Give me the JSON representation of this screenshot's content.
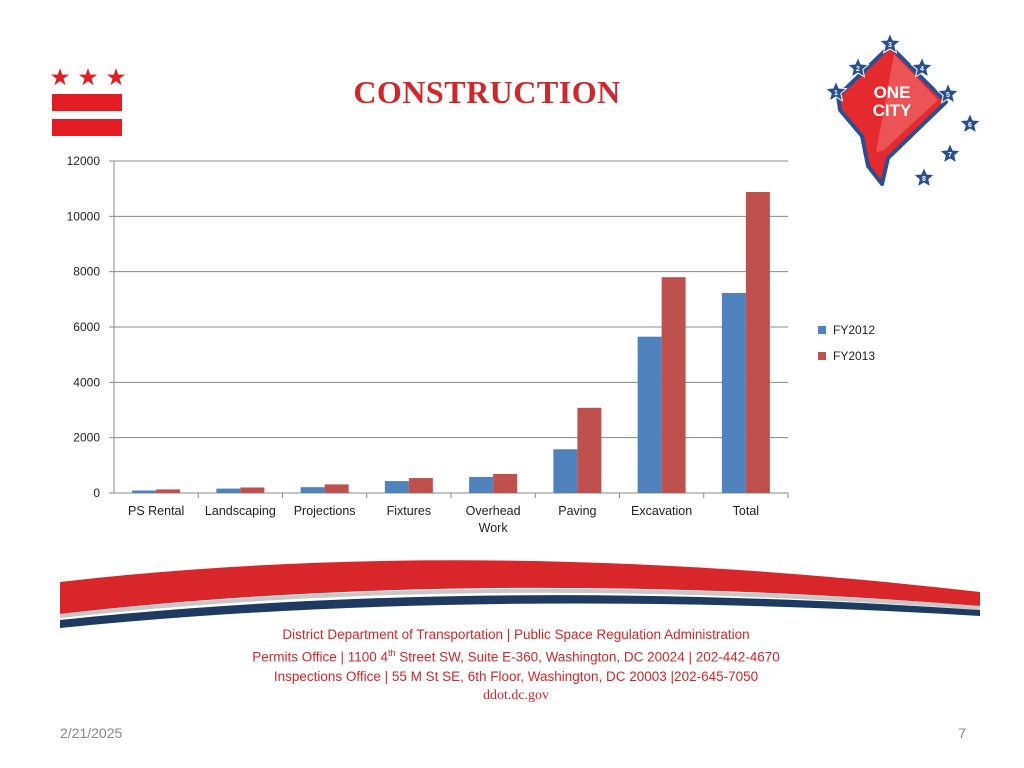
{
  "slide": {
    "title": "CONSTRUCTION",
    "date": "2/21/2025",
    "page_number": "7"
  },
  "logo": {
    "text_line1": "ONE",
    "text_line2": "CITY",
    "star_numbers": [
      "1",
      "2",
      "3",
      "4",
      "5",
      "6",
      "7",
      "8"
    ]
  },
  "footer": {
    "line1": "District Department of Transportation | Public Space Regulation Administration",
    "line2_pre": "Permits Office | 1100 4",
    "line2_sup": "th",
    "line2_post": " Street SW, Suite E-360, Washington, DC 20024 | 202-442-4670",
    "line3": "Inspections Office | 55 M St SE, 6th Floor, Washington, DC 20003  |202-645-7050",
    "website": "ddot.dc.gov"
  },
  "colors": {
    "brand_red": "#d0272c",
    "fy2012": "#4f81bd",
    "fy2013": "#c0504d",
    "navy": "#1f3a60"
  },
  "chart_data": {
    "type": "bar",
    "title": "",
    "xlabel": "",
    "ylabel": "",
    "categories": [
      "PS Rental",
      "Landscaping",
      "Projections",
      "Fixtures",
      "Overhead Work",
      "Paving",
      "Excavation",
      "Total"
    ],
    "category_lines": [
      [
        "PS Rental"
      ],
      [
        "Landscaping"
      ],
      [
        "Projections"
      ],
      [
        "Fixtures"
      ],
      [
        "Overhead",
        "Work"
      ],
      [
        "Paving"
      ],
      [
        "Excavation"
      ],
      [
        "Total"
      ]
    ],
    "series": [
      {
        "name": "FY2012",
        "color": "#4f81bd",
        "values": [
          90,
          160,
          210,
          430,
          580,
          1580,
          5650,
          7230
        ]
      },
      {
        "name": "FY2013",
        "color": "#c0504d",
        "values": [
          130,
          200,
          310,
          540,
          690,
          3080,
          7800,
          10880
        ]
      }
    ],
    "ylim": [
      0,
      12000
    ],
    "yticks": [
      0,
      2000,
      4000,
      6000,
      8000,
      10000,
      12000
    ],
    "grid": true,
    "legend_position": "right"
  }
}
